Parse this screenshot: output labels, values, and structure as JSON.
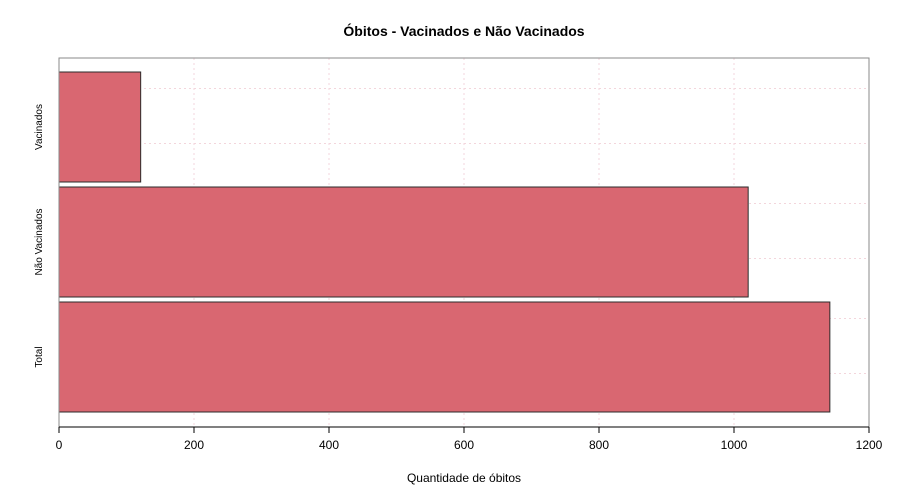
{
  "chart_data": {
    "type": "bar",
    "orientation": "horizontal",
    "title": "Óbitos - Vacinados e Não Vacinados",
    "xlabel": "Quantidade de óbitos",
    "ylabel": "",
    "categories": [
      "Total",
      "Não Vacinados",
      "Vacinados"
    ],
    "values": [
      1142,
      1021,
      121
    ],
    "xlim": [
      0,
      1200
    ],
    "xticks": [
      0,
      200,
      400,
      600,
      800,
      1000,
      1200
    ],
    "grid": true,
    "legend": "none",
    "colors": {
      "bar_fill": "#d96771",
      "bar_stroke": "#2b2b2b",
      "grid": "#f3d6dc",
      "frame": "#8a8a8a"
    }
  }
}
